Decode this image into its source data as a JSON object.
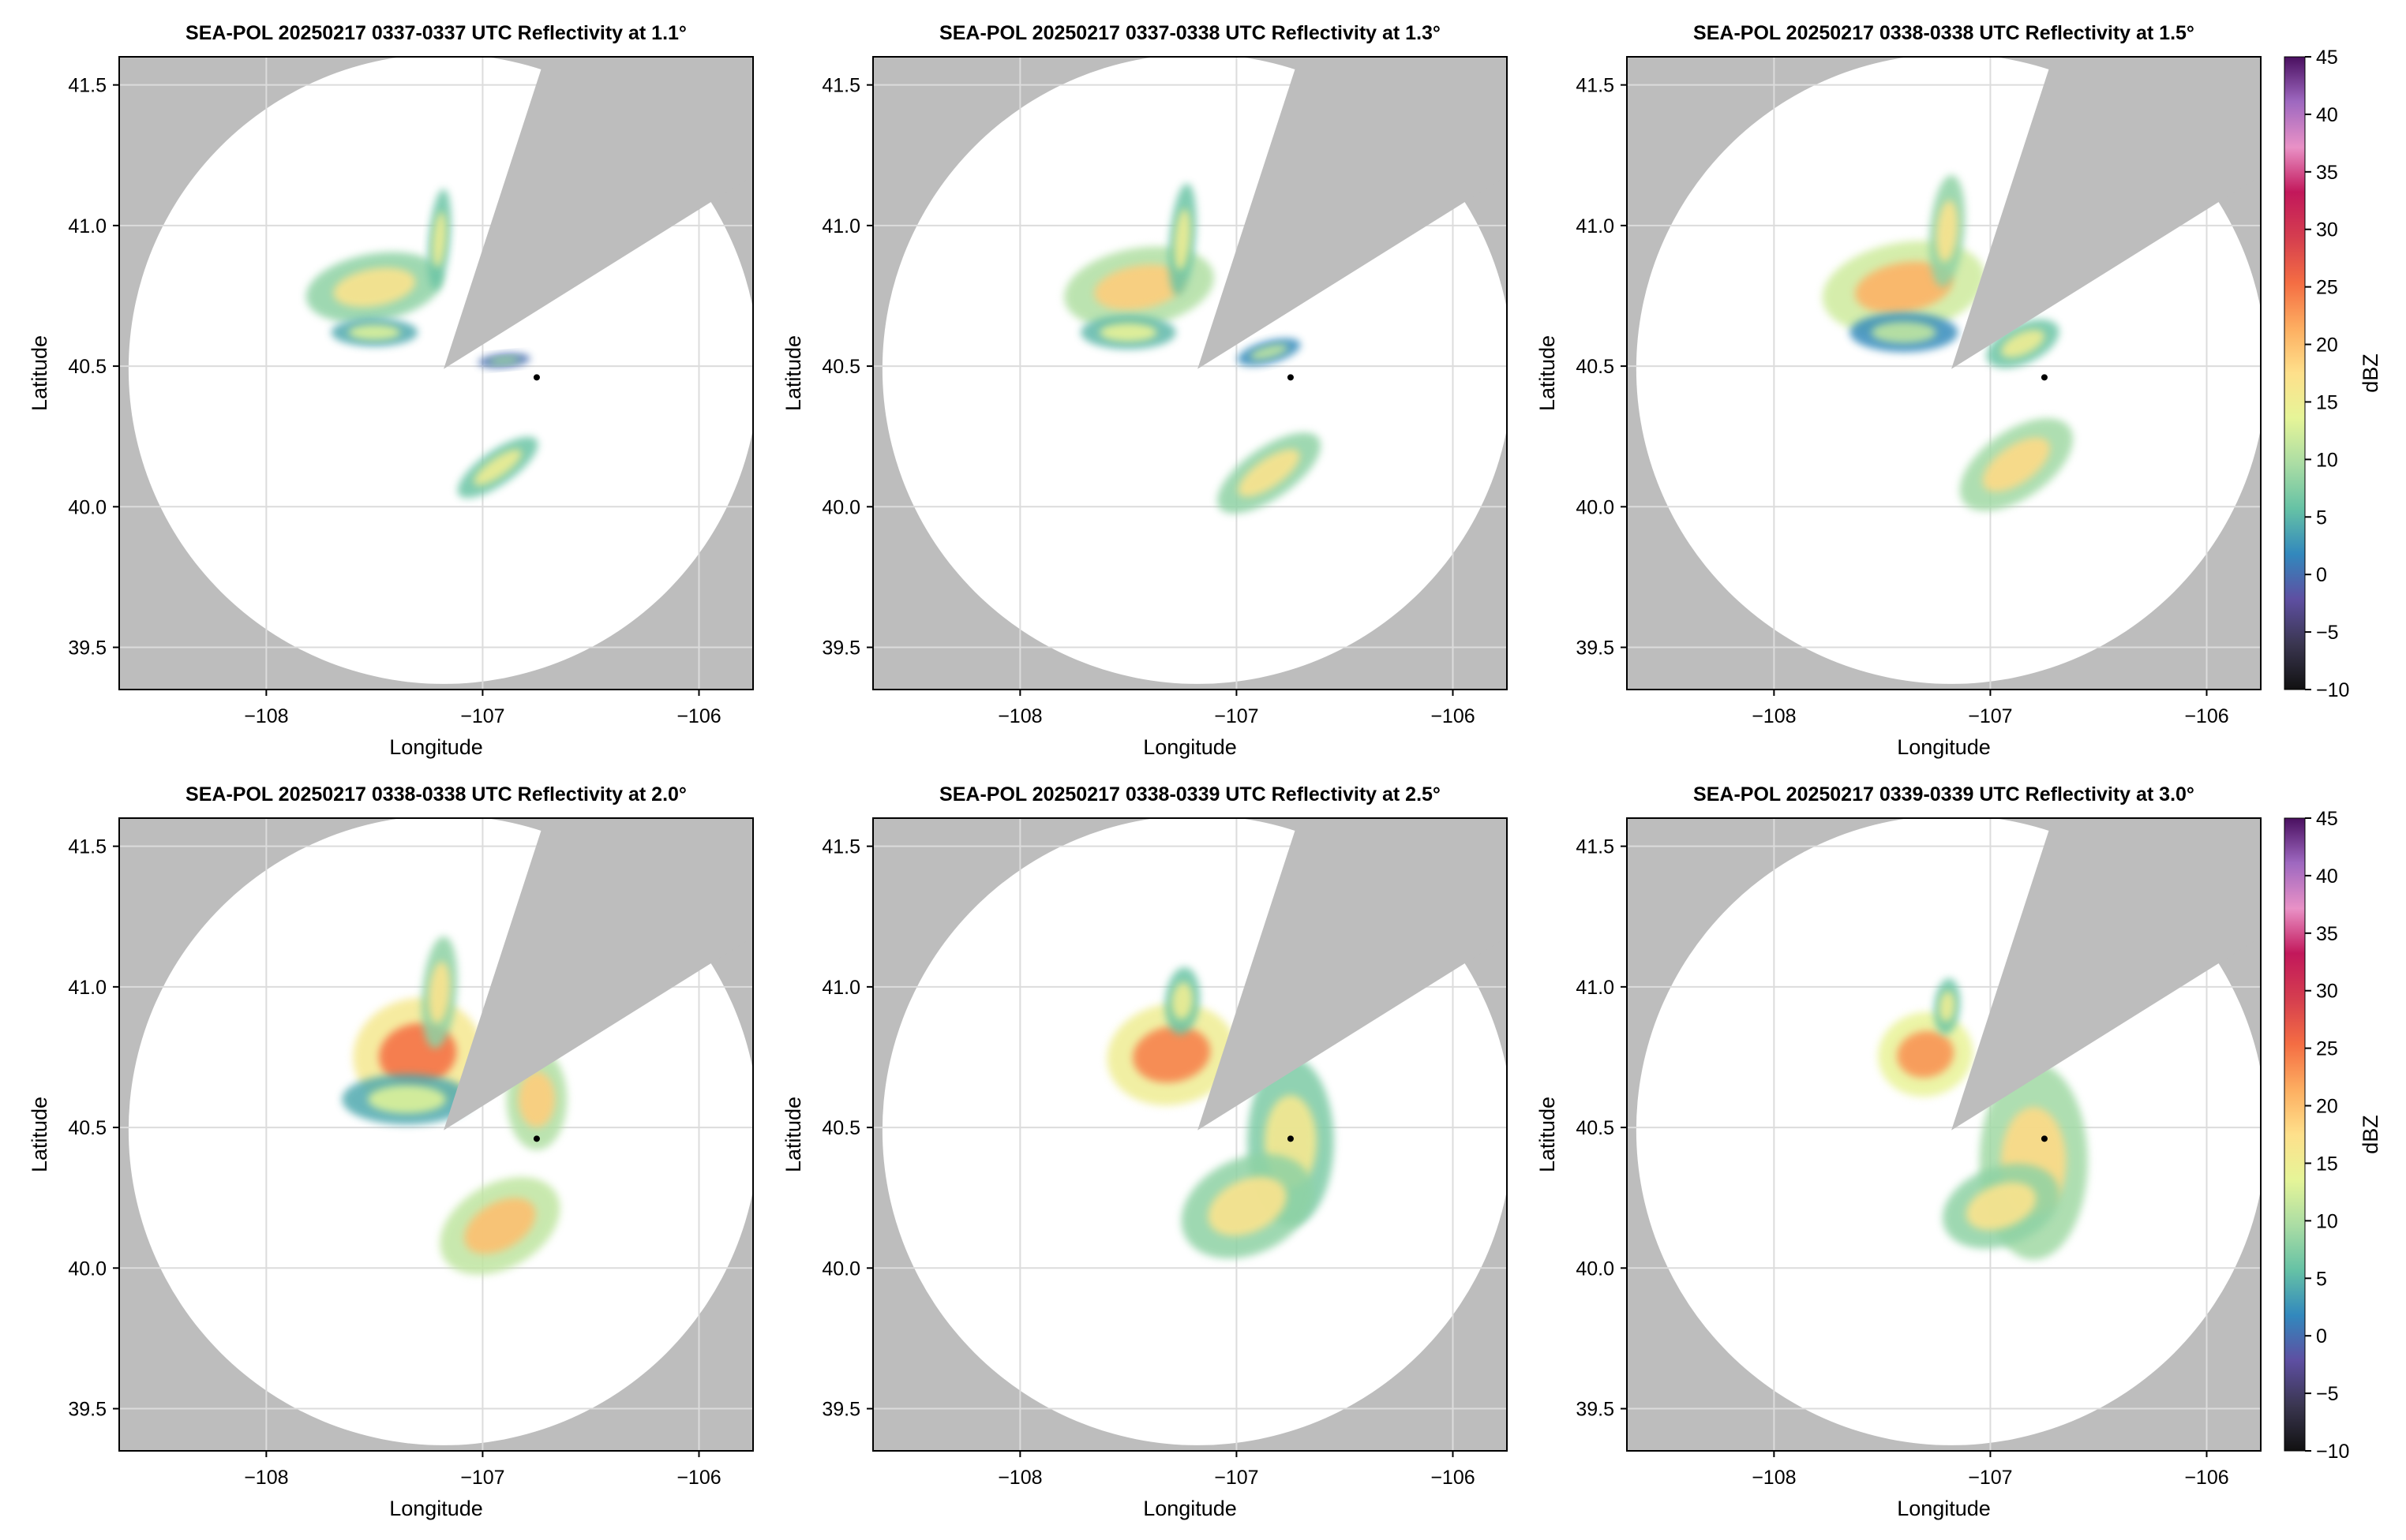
{
  "figure": {
    "colorbar_unit": "dBZ"
  },
  "chart_data": {
    "type": "heatmap",
    "panels": [
      {
        "title": "SEA-POL 20250217 0337-0337 UTC Reflectivity at 1.1°",
        "elevation_deg": 1.1,
        "xlabel": "Longitude",
        "ylabel": "Latitude",
        "xlim": [
          -108.68,
          -105.75
        ],
        "ylim": [
          39.35,
          41.6
        ],
        "xticks": [
          -108,
          -107,
          -106
        ],
        "xtick_labels": [
          "−108",
          "−107",
          "−106"
        ],
        "yticks": [
          39.5,
          40.0,
          40.5,
          41.0,
          41.5
        ],
        "ytick_labels": [
          "39.5",
          "40.0",
          "40.5",
          "41.0",
          "41.5"
        ],
        "grid": true,
        "echoes": [
          {
            "name": "northwest-band",
            "lon": -107.5,
            "lat": 40.78,
            "rx": 0.32,
            "ry": 0.12,
            "rot": -10,
            "dbz": 14
          },
          {
            "name": "west-blob",
            "lon": -107.5,
            "lat": 40.62,
            "rx": 0.2,
            "ry": 0.05,
            "rot": 0,
            "dbz": 10
          },
          {
            "name": "north-finger",
            "lon": -107.2,
            "lat": 40.95,
            "rx": 0.05,
            "ry": 0.18,
            "rot": 5,
            "dbz": 12
          },
          {
            "name": "east-strip",
            "lon": -106.9,
            "lat": 40.52,
            "rx": 0.12,
            "ry": 0.025,
            "rot": -5,
            "dbz": 6
          },
          {
            "name": "south-band",
            "lon": -106.93,
            "lat": 40.14,
            "rx": 0.22,
            "ry": 0.06,
            "rot": -35,
            "dbz": 12
          }
        ]
      },
      {
        "title": "SEA-POL 20250217 0337-0338 UTC Reflectivity at 1.3°",
        "elevation_deg": 1.3,
        "xlabel": "Longitude",
        "ylabel": "Latitude",
        "xlim": [
          -108.68,
          -105.75
        ],
        "ylim": [
          39.35,
          41.6
        ],
        "xticks": [
          -108,
          -107,
          -106
        ],
        "xtick_labels": [
          "−108",
          "−107",
          "−106"
        ],
        "yticks": [
          39.5,
          40.0,
          40.5,
          41.0,
          41.5
        ],
        "ytick_labels": [
          "39.5",
          "40.0",
          "40.5",
          "41.0",
          "41.5"
        ],
        "grid": true,
        "echoes": [
          {
            "name": "northwest-band",
            "lon": -107.45,
            "lat": 40.78,
            "rx": 0.35,
            "ry": 0.14,
            "rot": -10,
            "dbz": 16
          },
          {
            "name": "west-blob",
            "lon": -107.5,
            "lat": 40.62,
            "rx": 0.22,
            "ry": 0.06,
            "rot": 0,
            "dbz": 11
          },
          {
            "name": "north-finger",
            "lon": -107.25,
            "lat": 40.95,
            "rx": 0.06,
            "ry": 0.2,
            "rot": 5,
            "dbz": 12
          },
          {
            "name": "east-strip",
            "lon": -106.85,
            "lat": 40.55,
            "rx": 0.15,
            "ry": 0.04,
            "rot": -15,
            "dbz": 8
          },
          {
            "name": "south-band",
            "lon": -106.85,
            "lat": 40.12,
            "rx": 0.28,
            "ry": 0.09,
            "rot": -35,
            "dbz": 14
          }
        ]
      },
      {
        "title": "SEA-POL 20250217 0338-0338 UTC Reflectivity at 1.5°",
        "elevation_deg": 1.5,
        "xlabel": "Longitude",
        "ylabel": "Latitude",
        "xlim": [
          -108.68,
          -105.75
        ],
        "ylim": [
          39.35,
          41.6
        ],
        "xticks": [
          -108,
          -107,
          -106
        ],
        "xtick_labels": [
          "−108",
          "−107",
          "−106"
        ],
        "yticks": [
          39.5,
          40.0,
          40.5,
          41.0,
          41.5
        ],
        "ytick_labels": [
          "39.5",
          "40.0",
          "40.5",
          "41.0",
          "41.5"
        ],
        "grid": true,
        "echoes": [
          {
            "name": "northwest-band",
            "lon": -107.4,
            "lat": 40.78,
            "rx": 0.38,
            "ry": 0.16,
            "rot": -10,
            "dbz": 18
          },
          {
            "name": "west-blob",
            "lon": -107.4,
            "lat": 40.62,
            "rx": 0.25,
            "ry": 0.07,
            "rot": 0,
            "dbz": 8
          },
          {
            "name": "north-finger",
            "lon": -107.2,
            "lat": 40.98,
            "rx": 0.08,
            "ry": 0.2,
            "rot": 5,
            "dbz": 14
          },
          {
            "name": "east-strip",
            "lon": -106.85,
            "lat": 40.58,
            "rx": 0.18,
            "ry": 0.07,
            "rot": -25,
            "dbz": 12
          },
          {
            "name": "south-band",
            "lon": -106.88,
            "lat": 40.15,
            "rx": 0.3,
            "ry": 0.12,
            "rot": -35,
            "dbz": 15
          }
        ]
      },
      {
        "title": "SEA-POL 20250217 0338-0338 UTC Reflectivity at 2.0°",
        "elevation_deg": 2.0,
        "xlabel": "Longitude",
        "ylabel": "Latitude",
        "xlim": [
          -108.68,
          -105.75
        ],
        "ylim": [
          39.35,
          41.6
        ],
        "xticks": [
          -108,
          -107,
          -106
        ],
        "xtick_labels": [
          "−108",
          "−107",
          "−106"
        ],
        "yticks": [
          39.5,
          40.0,
          40.5,
          41.0,
          41.5
        ],
        "ytick_labels": [
          "39.5",
          "40.0",
          "40.5",
          "41.0",
          "41.5"
        ],
        "grid": true,
        "echoes": [
          {
            "name": "northwest-core",
            "lon": -107.3,
            "lat": 40.76,
            "rx": 0.3,
            "ry": 0.2,
            "rot": -10,
            "dbz": 22
          },
          {
            "name": "west-blob",
            "lon": -107.35,
            "lat": 40.6,
            "rx": 0.3,
            "ry": 0.09,
            "rot": 0,
            "dbz": 10
          },
          {
            "name": "north-finger",
            "lon": -107.2,
            "lat": 40.98,
            "rx": 0.08,
            "ry": 0.2,
            "rot": 5,
            "dbz": 14
          },
          {
            "name": "east-cell",
            "lon": -106.75,
            "lat": 40.6,
            "rx": 0.14,
            "ry": 0.18,
            "rot": 0,
            "dbz": 16
          },
          {
            "name": "south-band",
            "lon": -106.92,
            "lat": 40.15,
            "rx": 0.3,
            "ry": 0.15,
            "rot": -30,
            "dbz": 17
          }
        ]
      },
      {
        "title": "SEA-POL 20250217 0338-0339 UTC Reflectivity at 2.5°",
        "elevation_deg": 2.5,
        "xlabel": "Longitude",
        "ylabel": "Latitude",
        "xlim": [
          -108.68,
          -105.75
        ],
        "ylim": [
          39.35,
          41.6
        ],
        "xticks": [
          -108,
          -107,
          -106
        ],
        "xtick_labels": [
          "−108",
          "−107",
          "−106"
        ],
        "yticks": [
          39.5,
          40.0,
          40.5,
          41.0,
          41.5
        ],
        "ytick_labels": [
          "39.5",
          "40.0",
          "40.5",
          "41.0",
          "41.5"
        ],
        "grid": true,
        "echoes": [
          {
            "name": "northwest-core",
            "lon": -107.3,
            "lat": 40.76,
            "rx": 0.3,
            "ry": 0.18,
            "rot": -10,
            "dbz": 21
          },
          {
            "name": "north-finger",
            "lon": -107.25,
            "lat": 40.95,
            "rx": 0.08,
            "ry": 0.12,
            "rot": 5,
            "dbz": 12
          },
          {
            "name": "east-cell",
            "lon": -106.75,
            "lat": 40.45,
            "rx": 0.2,
            "ry": 0.3,
            "rot": 0,
            "dbz": 13
          },
          {
            "name": "south-band",
            "lon": -106.95,
            "lat": 40.22,
            "rx": 0.32,
            "ry": 0.17,
            "rot": -25,
            "dbz": 14
          }
        ]
      },
      {
        "title": "SEA-POL 20250217 0339-0339 UTC Reflectivity at 3.0°",
        "elevation_deg": 3.0,
        "xlabel": "Longitude",
        "ylabel": "Latitude",
        "xlim": [
          -108.68,
          -105.75
        ],
        "ylim": [
          39.35,
          41.6
        ],
        "xticks": [
          -108,
          -107,
          -106
        ],
        "xtick_labels": [
          "−108",
          "−107",
          "−106"
        ],
        "yticks": [
          39.5,
          40.0,
          40.5,
          41.0,
          41.5
        ],
        "ytick_labels": [
          "39.5",
          "40.0",
          "40.5",
          "41.0",
          "41.5"
        ],
        "grid": true,
        "echoes": [
          {
            "name": "northwest-core",
            "lon": -107.3,
            "lat": 40.76,
            "rx": 0.22,
            "ry": 0.15,
            "rot": -10,
            "dbz": 20
          },
          {
            "name": "north-finger",
            "lon": -107.2,
            "lat": 40.93,
            "rx": 0.06,
            "ry": 0.1,
            "rot": 5,
            "dbz": 12
          },
          {
            "name": "east-cell",
            "lon": -106.8,
            "lat": 40.38,
            "rx": 0.25,
            "ry": 0.35,
            "rot": 0,
            "dbz": 15
          },
          {
            "name": "south-band",
            "lon": -106.95,
            "lat": 40.22,
            "rx": 0.28,
            "ry": 0.14,
            "rot": -20,
            "dbz": 14
          }
        ]
      }
    ],
    "radar": {
      "lon": -107.18,
      "lat": 40.49,
      "range_deg_lat": 1.12
    },
    "blocked_sector": {
      "start_bearing_deg": 18,
      "end_bearing_deg": 58
    },
    "marker": {
      "lon": -106.75,
      "lat": 40.46
    },
    "colorbar": {
      "label": "dBZ",
      "vmin": -10,
      "vmax": 45,
      "ticks": [
        -10,
        -5,
        0,
        5,
        10,
        15,
        20,
        25,
        30,
        35,
        40,
        45
      ],
      "tick_labels": [
        "−10",
        "−5",
        "0",
        "5",
        "10",
        "15",
        "20",
        "25",
        "30",
        "35",
        "40",
        "45"
      ],
      "colormap_stops": [
        "#111111",
        "#3a3650",
        "#5e4fa2",
        "#3288bd",
        "#66c2a5",
        "#abdda4",
        "#e6f598",
        "#fee08b",
        "#fdae61",
        "#f46d43",
        "#d53e4f",
        "#c2185b",
        "#e991c6",
        "#9e68c0",
        "#4a1060"
      ]
    },
    "colors": {
      "blocked_gray": "#bdbdbd",
      "grid": "#dcdcdc"
    }
  }
}
